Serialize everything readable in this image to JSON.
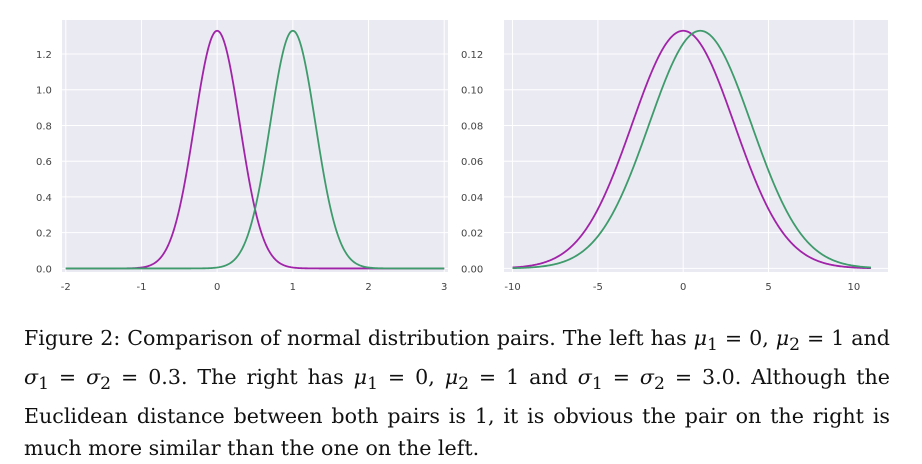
{
  "chart_data": [
    {
      "type": "line",
      "x_ticks": [
        "-2",
        "-1",
        "0",
        "1",
        "2",
        "3"
      ],
      "y_ticks": [
        "0.0",
        "0.2",
        "0.4",
        "0.6",
        "0.8",
        "1.0",
        "1.2"
      ],
      "xlim": [
        -2.05,
        3.05
      ],
      "ylim": [
        -0.02,
        1.39
      ],
      "x_tick_values": [
        -2,
        -1,
        0,
        1,
        2,
        3
      ],
      "y_tick_values": [
        0,
        0.2,
        0.4,
        0.6,
        0.8,
        1.0,
        1.2
      ],
      "x_range": [
        -2,
        3
      ],
      "grid": true,
      "series": [
        {
          "mu": 0,
          "sigma": 0.3,
          "color": "#a023a8"
        },
        {
          "mu": 1,
          "sigma": 0.3,
          "color": "#3f9a6c"
        }
      ]
    },
    {
      "type": "line",
      "x_ticks": [
        "-10",
        "-5",
        "0",
        "5",
        "10"
      ],
      "y_ticks": [
        "0.00",
        "0.02",
        "0.04",
        "0.06",
        "0.08",
        "0.10",
        "0.12"
      ],
      "xlim": [
        -10.5,
        12
      ],
      "ylim": [
        -0.002,
        0.139
      ],
      "x_tick_values": [
        -10,
        -5,
        0,
        5,
        10
      ],
      "y_tick_values": [
        0,
        0.02,
        0.04,
        0.06,
        0.08,
        0.1,
        0.12
      ],
      "x_range": [
        -10,
        11
      ],
      "grid": true,
      "series": [
        {
          "mu": 0,
          "sigma": 3.0,
          "color": "#a023a8"
        },
        {
          "mu": 1,
          "sigma": 3.0,
          "color": "#3f9a6c"
        }
      ]
    }
  ],
  "style": {
    "plot_background": "#eaeaf2",
    "grid_color": "#ffffff"
  },
  "caption": {
    "p1": "Figure 2: Comparison of normal distribution pairs. The left has ",
    "m1": "μ",
    "s1": "1",
    "p2": " = 0, ",
    "m2": "μ",
    "s2": "2",
    "p3": " = 1 and ",
    "m3": "σ",
    "s3": "1",
    "p4": " = ",
    "m4": "σ",
    "s4": "2",
    "p5": " = 0.3. The right has ",
    "m5": "μ",
    "s5": "1",
    "p6": " = 0, ",
    "m6": "μ",
    "s6": "2",
    "p7": " = 1 and ",
    "m7": "σ",
    "s7": "1",
    "p8": " = ",
    "m8": "σ",
    "s8": "2",
    "p9": " = 3.0. Although the Euclidean distance between both pairs is 1, it is obvious the pair on the right is much more similar than the one on the left."
  }
}
